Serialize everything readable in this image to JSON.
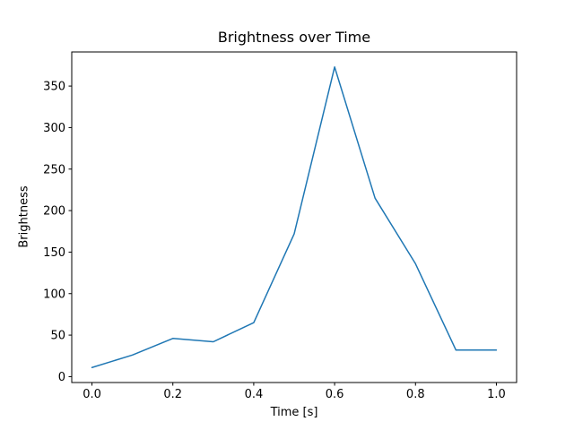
{
  "figure": {
    "background": "#ffffff",
    "spine_color": "#000000"
  },
  "chart_data": {
    "type": "line",
    "title": "Brightness over Time",
    "xlabel": "Time [s]",
    "ylabel": "Brightness",
    "x": [
      0.0,
      0.1,
      0.2,
      0.3,
      0.4,
      0.5,
      0.6,
      0.7,
      0.8,
      0.9,
      1.0
    ],
    "y": [
      11,
      26,
      46,
      42,
      65,
      172,
      373,
      215,
      136,
      32,
      32
    ],
    "series_name": "Brightness",
    "line_color": "#1f77b4",
    "line_width": 1.5,
    "xlim": [
      -0.05,
      1.05
    ],
    "ylim": [
      -7.1,
      391.1
    ],
    "xticks": [
      0.0,
      0.2,
      0.4,
      0.6,
      0.8,
      1.0
    ],
    "xtick_labels": [
      "0.0",
      "0.2",
      "0.4",
      "0.6",
      "0.8",
      "1.0"
    ],
    "yticks": [
      0,
      50,
      100,
      150,
      200,
      250,
      300,
      350
    ],
    "ytick_labels": [
      "0",
      "50",
      "100",
      "150",
      "200",
      "250",
      "300",
      "350"
    ],
    "grid": false,
    "legend": "none"
  }
}
